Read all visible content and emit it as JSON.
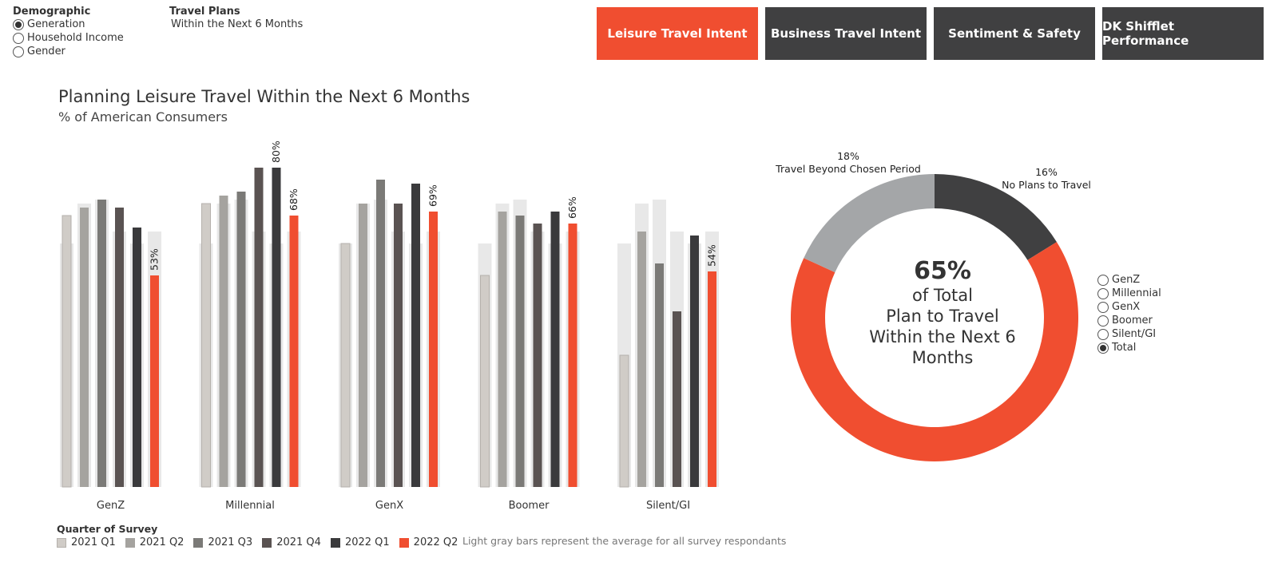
{
  "filters": {
    "demographic": {
      "title": "Demographic",
      "options": [
        "Generation",
        "Household Income",
        "Gender"
      ],
      "selected": "Generation"
    },
    "travel_plans": {
      "title": "Travel Plans",
      "value": "Within the Next 6 Months"
    }
  },
  "nav": {
    "buttons": [
      {
        "label": "Leisure Travel Intent",
        "active": true
      },
      {
        "label": "Business Travel Intent",
        "active": false
      },
      {
        "label": "Sentiment & Safety",
        "active": false
      },
      {
        "label": "DK Shifflet Performance",
        "active": false
      }
    ]
  },
  "colors": {
    "accent": "#f04e30",
    "nav_inactive": "#404041",
    "average_bar": "#e8e8e8",
    "quarters": [
      "#d0ccc7",
      "#a5a39f",
      "#7b7a77",
      "#5a5352",
      "#3a3a3c",
      "#f04e30"
    ],
    "donut": [
      "#404041",
      "#f04e30",
      "#a4a6a8"
    ]
  },
  "chart_data": [
    {
      "type": "bar",
      "title": "Planning Leisure Travel Within the Next 6 Months",
      "subtitle": "% of American Consumers",
      "categories": [
        "GenZ",
        "Millennial",
        "GenX",
        "Boomer",
        "Silent/GI"
      ],
      "legend_title": "Quarter of Survey",
      "series": [
        {
          "name": "2021 Q1",
          "values": [
            68,
            71,
            61,
            53,
            33
          ]
        },
        {
          "name": "2021 Q2",
          "values": [
            70,
            73,
            71,
            69,
            64
          ]
        },
        {
          "name": "2021 Q3",
          "values": [
            72,
            74,
            77,
            68,
            56
          ]
        },
        {
          "name": "2021 Q4",
          "values": [
            70,
            80,
            71,
            66,
            44
          ]
        },
        {
          "name": "2022 Q1",
          "values": [
            65,
            80,
            76,
            69,
            63
          ]
        },
        {
          "name": "2022 Q2",
          "values": [
            53,
            68,
            69,
            66,
            54
          ]
        }
      ],
      "average_series": {
        "name": "All respondents average",
        "values": [
          61,
          71,
          72,
          64,
          61,
          64
        ]
      },
      "data_labels": {
        "GenZ": "53%",
        "Millennial_q4": "80%",
        "Millennial": "68%",
        "GenX": "69%",
        "Boomer": "66%",
        "Silent/GI": "54%"
      },
      "ylim": [
        0,
        90
      ],
      "note": "Light gray bars represent the average for all survey respondants"
    },
    {
      "type": "pie",
      "style": "donut",
      "slices": [
        {
          "label": "No Plans to Travel",
          "value": 16,
          "pct_label": "16%"
        },
        {
          "label": "Plan to Travel Within the Next 6 Months",
          "value": 65,
          "pct_label": "65%"
        },
        {
          "label": "Travel Beyond Chosen Period",
          "value": 18,
          "pct_label": "18%"
        }
      ],
      "center": {
        "big": "65%",
        "line1": "of Total",
        "line2": "Plan to Travel",
        "line3": "Within the Next 6",
        "line4": "Months"
      }
    }
  ],
  "segment_selector": {
    "options": [
      "GenZ",
      "Millennial",
      "GenX",
      "Boomer",
      "Silent/GI",
      "Total"
    ],
    "selected": "Total"
  }
}
